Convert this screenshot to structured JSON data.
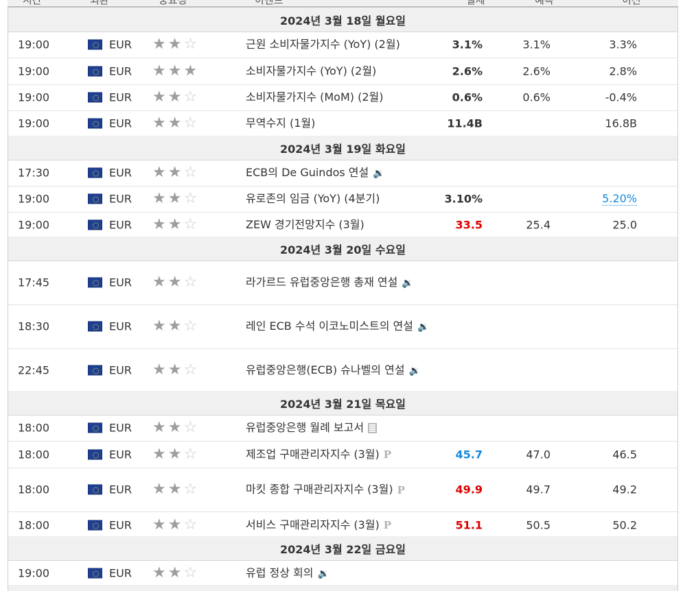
{
  "header": {
    "cols": [
      "시간",
      "외환",
      "중요성",
      "이벤트",
      "실제",
      "예측",
      "이전"
    ]
  },
  "days": [
    {
      "date": "2024년 3월 18일 월요일",
      "events": [
        {
          "time": "19:00",
          "currency": "EUR",
          "importance": 2,
          "name": "근원 소비자물가지수 (YoY) (2월)",
          "icon": "",
          "actual": "3.1%",
          "actual_color": "#333333",
          "forecast": "3.1%",
          "previous": "3.3%"
        },
        {
          "time": "19:00",
          "currency": "EUR",
          "importance": 3,
          "name": "소비자물가지수 (YoY) (2월)",
          "icon": "",
          "actual": "2.6%",
          "actual_color": "#333333",
          "forecast": "2.6%",
          "previous": "2.8%"
        },
        {
          "time": "19:00",
          "currency": "EUR",
          "importance": 2,
          "name": "소비자물가지수 (MoM) (2월)",
          "icon": "",
          "actual": "0.6%",
          "actual_color": "#333333",
          "forecast": "0.6%",
          "previous": "-0.4%"
        },
        {
          "time": "19:00",
          "currency": "EUR",
          "importance": 2,
          "name": "무역수지 (1월)",
          "icon": "",
          "actual": "11.4B",
          "actual_color": "#333333",
          "forecast": "",
          "previous": "16.8B"
        }
      ]
    },
    {
      "date": "2024년 3월 19일 화요일",
      "events": [
        {
          "time": "17:30",
          "currency": "EUR",
          "importance": 2,
          "name": "ECB의 De Guindos 연설",
          "icon": "speaker-icon",
          "actual": "",
          "actual_color": "#333333",
          "forecast": "",
          "previous": ""
        },
        {
          "time": "19:00",
          "currency": "EUR",
          "importance": 2,
          "name": "유로존의 임금 (YoY) (4분기)",
          "icon": "",
          "actual": "3.10%",
          "actual_color": "#333333",
          "forecast": "",
          "previous": "5.20%"
        },
        {
          "time": "19:00",
          "currency": "EUR",
          "importance": 2,
          "name": "ZEW 경기전망지수 (3월)",
          "icon": "",
          "actual": "33.5",
          "actual_color": "#dd0000",
          "forecast": "25.4",
          "previous": "25.0"
        }
      ]
    },
    {
      "date": "2024년 3월 20일 수요일",
      "events": [
        {
          "time": "17:45",
          "currency": "EUR",
          "importance": 2,
          "name": "라가르드 유럽중앙은행 총재 연설",
          "icon": "speaker-icon",
          "actual": "",
          "actual_color": "#333333",
          "forecast": "",
          "previous": ""
        },
        {
          "time": "18:30",
          "currency": "EUR",
          "importance": 2,
          "name": "레인 ECB 수석 이코노미스트의 연설",
          "icon": "speaker-icon",
          "actual": "",
          "actual_color": "#333333",
          "forecast": "",
          "previous": ""
        },
        {
          "time": "22:45",
          "currency": "EUR",
          "importance": 2,
          "name": "유럽중앙은행(ECB) 슈나벨의 연설",
          "icon": "speaker-icon",
          "actual": "",
          "actual_color": "#333333",
          "forecast": "",
          "previous": ""
        }
      ]
    },
    {
      "date": "2024년 3월 21일 목요일",
      "events": [
        {
          "time": "18:00",
          "currency": "EUR",
          "importance": 2,
          "name": "유럽중앙은행 월례 보고서",
          "icon": "document-icon",
          "actual": "",
          "actual_color": "#333333",
          "forecast": "",
          "previous": ""
        },
        {
          "time": "18:00",
          "currency": "EUR",
          "importance": 2,
          "name": "제조업 구매관리자지수 (3월)",
          "icon": "preliminary-icon",
          "actual": "45.7",
          "actual_color": "#1389dd",
          "forecast": "47.0",
          "previous": "46.5"
        },
        {
          "time": "18:00",
          "currency": "EUR",
          "importance": 2,
          "name": "마킷 종합 구매관리자지수 (3월)",
          "icon": "preliminary-icon",
          "actual": "49.9",
          "actual_color": "#dd0000",
          "forecast": "49.7",
          "previous": "49.2"
        },
        {
          "time": "18:00",
          "currency": "EUR",
          "importance": 2,
          "name": "서비스 구매관리자지수 (3월)",
          "icon": "preliminary-icon",
          "actual": "51.1",
          "actual_color": "#dd0000",
          "forecast": "50.5",
          "previous": "50.2"
        }
      ]
    },
    {
      "date": "2024년 3월 22일 금요일",
      "events": [
        {
          "time": "19:00",
          "currency": "EUR",
          "importance": 2,
          "name": "유럽 정상 회의",
          "icon": "speaker-icon",
          "actual": "",
          "actual_color": "#333333",
          "forecast": "",
          "previous": ""
        }
      ]
    }
  ]
}
